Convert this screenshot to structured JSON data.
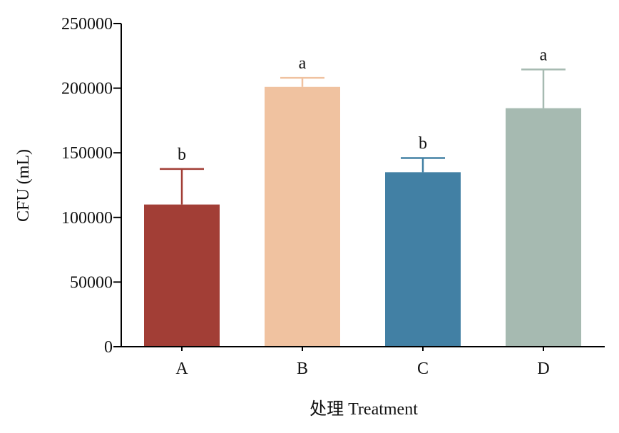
{
  "chart_data": {
    "type": "bar",
    "title": "",
    "xlabel": "处理 Treatment",
    "ylabel": "CFU (mL)",
    "categories": [
      "A",
      "B",
      "C",
      "D"
    ],
    "values": [
      110000,
      201000,
      135000,
      184500
    ],
    "error_upper": [
      137500,
      208000,
      146000,
      214500
    ],
    "significance": [
      "b",
      "a",
      "b",
      "a"
    ],
    "colors": [
      "#a23e36",
      "#f0c2a0",
      "#4280a4",
      "#a6bab1"
    ],
    "ylim": [
      0,
      250000
    ],
    "yticks": [
      0,
      50000,
      100000,
      150000,
      200000,
      250000
    ],
    "ytick_labels": [
      "0",
      "50000",
      "100000",
      "150000",
      "200000",
      "250000"
    ],
    "grid": false,
    "legend": "none"
  }
}
